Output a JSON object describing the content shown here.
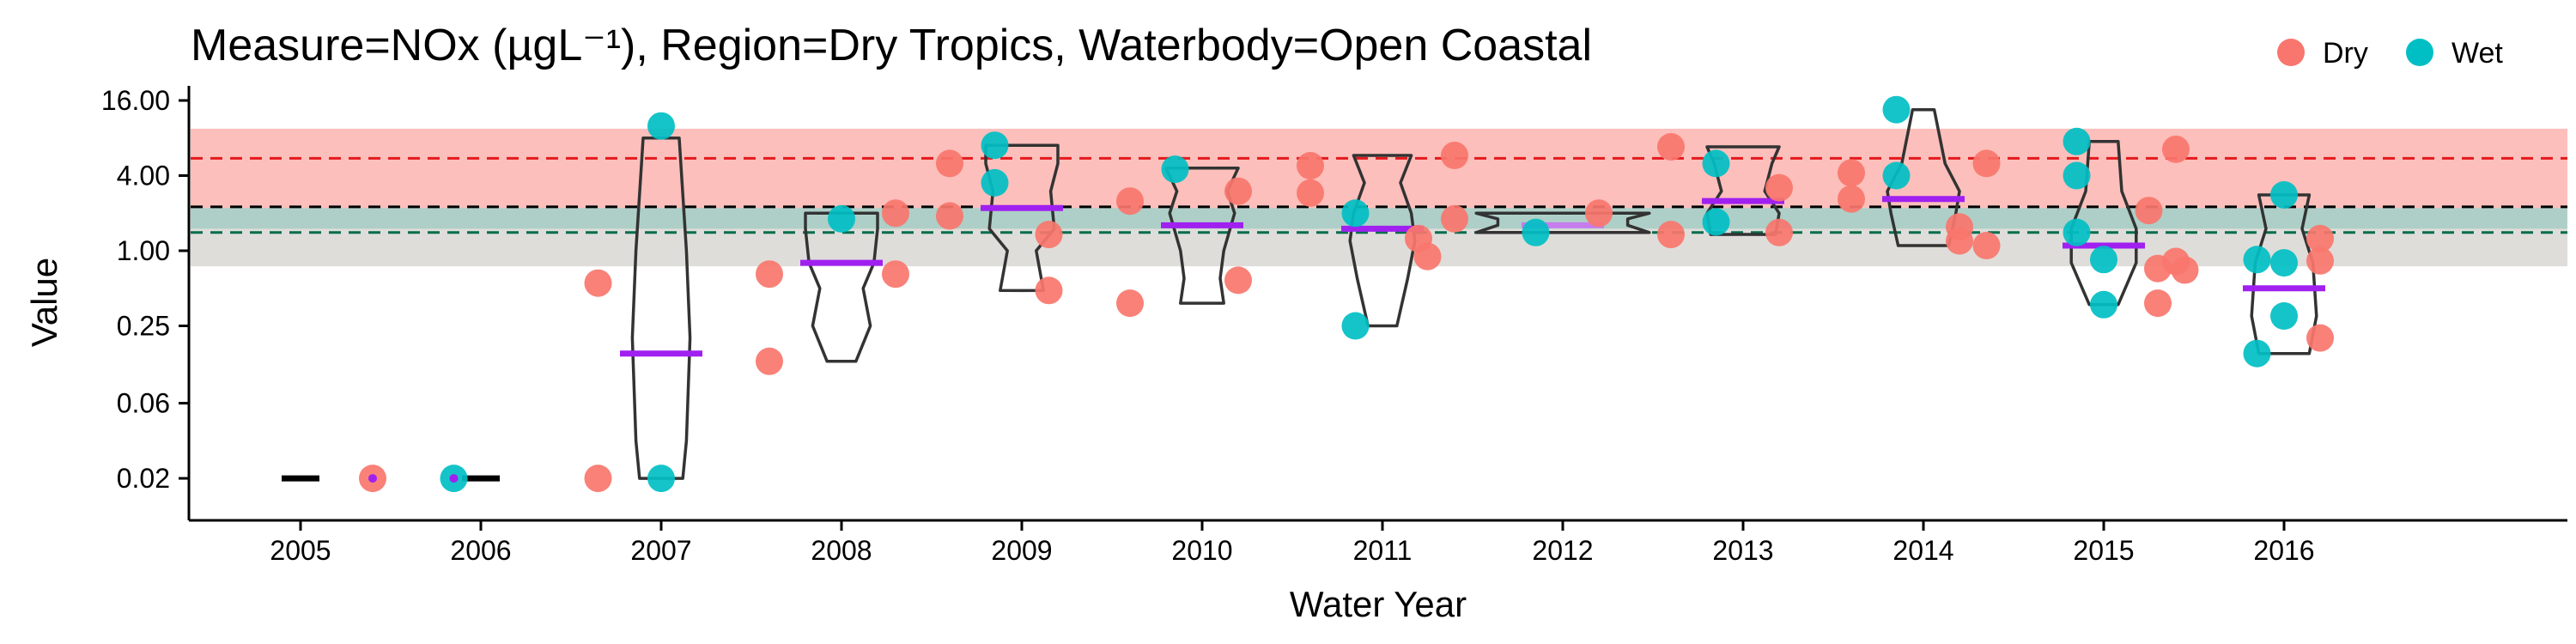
{
  "chart_data": {
    "type": "scatter",
    "title": "Measure=NOx (µgL⁻¹), Region=Dry Tropics, Waterbody=Open Coastal",
    "xlabel": "Water Year",
    "ylabel": "Value",
    "y_scale": "log",
    "y_ticks": [
      {
        "value": 16,
        "label": "16.00"
      },
      {
        "value": 4,
        "label": "4.00"
      },
      {
        "value": 1,
        "label": "1.00"
      },
      {
        "value": 0.25,
        "label": "0.25"
      },
      {
        "value": 0.06,
        "label": "0.06"
      },
      {
        "value": 0.015,
        "label": "0.02"
      }
    ],
    "categories": [
      "2005",
      "2006",
      "2007",
      "2008",
      "2009",
      "2010",
      "2011",
      "2012",
      "2013",
      "2014",
      "2015",
      "2016"
    ],
    "legend": {
      "placement": "top-right",
      "items": [
        {
          "name": "Dry",
          "color": "#F8766D"
        },
        {
          "name": "Wet",
          "color": "#00BFC4"
        }
      ]
    },
    "reference_bands": [
      {
        "color": "#F8766D",
        "low": 0.75,
        "high": 9.5,
        "opacity": 0.18
      },
      {
        "color": "#F8766D",
        "low": 2.2,
        "high": 9.5,
        "opacity": 0.35
      },
      {
        "color": "#00A087",
        "low": 0.75,
        "high": 2.2,
        "opacity": 0.12
      },
      {
        "color": "#00A087",
        "low": 1.5,
        "high": 2.2,
        "opacity": 0.22
      }
    ],
    "reference_lines": [
      {
        "value": 5.5,
        "color": "#E41A1C"
      },
      {
        "value": 2.25,
        "color": "#000000"
      },
      {
        "value": 1.4,
        "color": "#006D4E"
      }
    ],
    "series": [
      {
        "name": "Dry",
        "color": "#F8766D",
        "points": [
          [
            2005.4,
            0.015
          ],
          [
            2006.65,
            0.015
          ],
          [
            2006.65,
            0.55
          ],
          [
            2007.6,
            0.13
          ],
          [
            2007.6,
            0.65
          ],
          [
            2008.3,
            0.65
          ],
          [
            2008.3,
            2.0
          ],
          [
            2008.6,
            1.9
          ],
          [
            2008.6,
            5.0
          ],
          [
            2009.15,
            1.35
          ],
          [
            2009.15,
            0.48
          ],
          [
            2009.6,
            0.38
          ],
          [
            2009.6,
            2.5
          ],
          [
            2010.2,
            3.0
          ],
          [
            2010.2,
            0.58
          ],
          [
            2010.6,
            2.9
          ],
          [
            2010.6,
            4.8
          ],
          [
            2011.2,
            1.25
          ],
          [
            2011.25,
            0.9
          ],
          [
            2011.4,
            1.8
          ],
          [
            2011.4,
            5.8
          ],
          [
            2012.2,
            2.0
          ],
          [
            2012.6,
            1.35
          ],
          [
            2012.6,
            6.8
          ],
          [
            2013.2,
            1.4
          ],
          [
            2013.2,
            3.2
          ],
          [
            2013.6,
            2.6
          ],
          [
            2013.6,
            4.2
          ],
          [
            2014.2,
            1.2
          ],
          [
            2014.2,
            1.55
          ],
          [
            2014.35,
            5.0
          ],
          [
            2014.35,
            1.1
          ],
          [
            2015.25,
            2.1
          ],
          [
            2015.3,
            0.72
          ],
          [
            2015.3,
            0.38
          ],
          [
            2015.4,
            6.5
          ],
          [
            2015.4,
            0.82
          ],
          [
            2015.45,
            0.7
          ],
          [
            2016.2,
            1.25
          ],
          [
            2016.2,
            0.83
          ],
          [
            2016.2,
            0.2
          ]
        ]
      },
      {
        "name": "Wet",
        "color": "#00BFC4",
        "points": [
          [
            2005.85,
            0.015
          ],
          [
            2007.0,
            0.015
          ],
          [
            2007.0,
            10.0
          ],
          [
            2008.0,
            1.8
          ],
          [
            2008.85,
            7.0
          ],
          [
            2008.85,
            3.5
          ],
          [
            2009.85,
            4.5
          ],
          [
            2010.85,
            0.25
          ],
          [
            2010.85,
            2.0
          ],
          [
            2011.85,
            1.4
          ],
          [
            2012.85,
            1.7
          ],
          [
            2012.85,
            5.0
          ],
          [
            2013.85,
            13.5
          ],
          [
            2013.85,
            4.0
          ],
          [
            2014.85,
            1.4
          ],
          [
            2014.85,
            4.0
          ],
          [
            2014.85,
            7.5
          ],
          [
            2015.0,
            0.85
          ],
          [
            2015.0,
            0.37
          ],
          [
            2015.85,
            0.85
          ],
          [
            2015.85,
            0.15
          ],
          [
            2016.0,
            0.3
          ],
          [
            2016.0,
            0.8
          ],
          [
            2016.0,
            2.8
          ]
        ]
      }
    ],
    "violins": [
      {
        "year": 2007,
        "low": 0.015,
        "high": 8.0,
        "shape": [
          [
            0.015,
            0.6
          ],
          [
            0.03,
            0.7
          ],
          [
            0.2,
            0.8
          ],
          [
            1.0,
            0.7
          ],
          [
            8.0,
            0.5
          ]
        ]
      },
      {
        "year": 2008,
        "low": 0.13,
        "high": 2.0,
        "shape": [
          [
            0.13,
            0.4
          ],
          [
            0.25,
            0.8
          ],
          [
            0.5,
            0.6
          ],
          [
            0.8,
            0.9
          ],
          [
            1.5,
            1.0
          ],
          [
            2.0,
            1.0
          ]
        ]
      },
      {
        "year": 2009,
        "low": 0.48,
        "high": 7.0,
        "shape": [
          [
            0.48,
            0.6
          ],
          [
            1.0,
            0.4
          ],
          [
            1.5,
            0.9
          ],
          [
            3.0,
            0.8
          ],
          [
            5.0,
            1.0
          ],
          [
            7.0,
            1.0
          ]
        ]
      },
      {
        "year": 2010,
        "low": 0.38,
        "high": 4.6,
        "shape": [
          [
            0.38,
            0.6
          ],
          [
            0.6,
            0.5
          ],
          [
            1.0,
            0.6
          ],
          [
            2.0,
            0.9
          ],
          [
            3.0,
            0.7
          ],
          [
            4.6,
            1.0
          ]
        ]
      },
      {
        "year": 2011,
        "low": 0.25,
        "high": 5.8,
        "shape": [
          [
            0.25,
            0.4
          ],
          [
            0.6,
            0.7
          ],
          [
            1.2,
            0.9
          ],
          [
            2.0,
            0.8
          ],
          [
            3.5,
            0.5
          ],
          [
            5.8,
            0.8
          ]
        ]
      },
      {
        "year": 2012,
        "low": 1.4,
        "high": 2.0,
        "shape": [
          [
            1.4,
            2.4
          ],
          [
            1.6,
            1.8
          ],
          [
            1.8,
            1.8
          ],
          [
            2.0,
            2.4
          ]
        ]
      },
      {
        "year": 2013,
        "low": 1.35,
        "high": 6.8,
        "shape": [
          [
            1.35,
            0.9
          ],
          [
            2.0,
            1.0
          ],
          [
            3.0,
            0.6
          ],
          [
            5.0,
            0.8
          ],
          [
            6.8,
            1.0
          ]
        ]
      },
      {
        "year": 2014,
        "low": 1.1,
        "high": 13.5,
        "shape": [
          [
            1.1,
            0.7
          ],
          [
            2.0,
            0.9
          ],
          [
            3.0,
            1.0
          ],
          [
            5.0,
            0.6
          ],
          [
            13.5,
            0.3
          ]
        ]
      },
      {
        "year": 2015,
        "low": 0.37,
        "high": 7.5,
        "shape": [
          [
            0.37,
            0.4
          ],
          [
            0.8,
            0.9
          ],
          [
            1.5,
            0.9
          ],
          [
            3.0,
            0.5
          ],
          [
            7.5,
            0.4
          ]
        ]
      },
      {
        "year": 2016,
        "low": 0.15,
        "high": 2.8,
        "shape": [
          [
            0.15,
            0.7
          ],
          [
            0.3,
            0.9
          ],
          [
            0.8,
            0.8
          ],
          [
            1.5,
            0.5
          ],
          [
            2.8,
            0.7
          ]
        ]
      }
    ],
    "medians": [
      {
        "year": 2005,
        "value": 0.015,
        "color": "#000000"
      },
      {
        "year": 2006,
        "value": 0.015,
        "color": "#000000"
      },
      {
        "year": 2007,
        "value": 0.15,
        "color": "#A020F0"
      },
      {
        "year": 2008,
        "value": 0.8,
        "color": "#A020F0"
      },
      {
        "year": 2009,
        "value": 2.2,
        "color": "#A020F0"
      },
      {
        "year": 2010,
        "value": 1.6,
        "color": "#A020F0"
      },
      {
        "year": 2011,
        "value": 1.5,
        "color": "#A020F0"
      },
      {
        "year": 2012,
        "value": 1.6,
        "color": "#C77DEE"
      },
      {
        "year": 2013,
        "value": 2.5,
        "color": "#A020F0"
      },
      {
        "year": 2014,
        "value": 2.6,
        "color": "#A020F0"
      },
      {
        "year": 2015,
        "value": 1.1,
        "color": "#A020F0"
      },
      {
        "year": 2016,
        "value": 0.5,
        "color": "#A020F0"
      }
    ]
  }
}
